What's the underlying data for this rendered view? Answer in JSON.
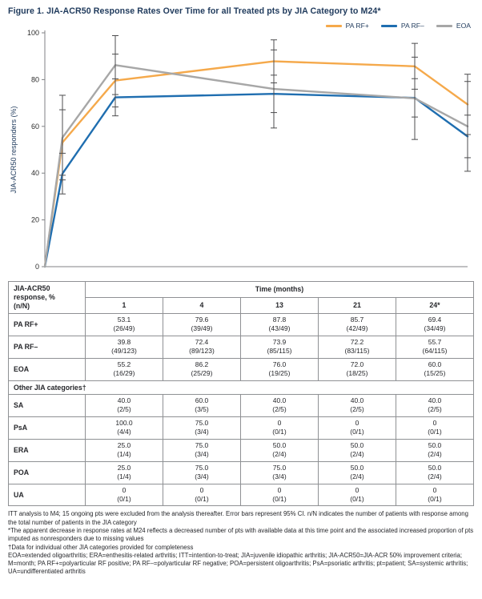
{
  "title": "Figure 1. JIA-ACR50 Response Rates Over Time for all Treated pts by JIA Category to M24*",
  "chart_data": {
    "type": "line",
    "x": [
      0,
      1,
      4,
      13,
      21,
      24
    ],
    "xlim": [
      0,
      24
    ],
    "ylim": [
      0,
      100
    ],
    "yticks": [
      0,
      20,
      40,
      60,
      80,
      100
    ],
    "ylabel": "JIA-ACR50 responders (%)",
    "grid": false,
    "legend_position": "top-right",
    "error_bars": "95% CI",
    "series": [
      {
        "name": "PA RF+",
        "color": "#f5a94b",
        "values": [
          0,
          53.1,
          79.6,
          87.8,
          85.7,
          69.4
        ],
        "ci": [
          null,
          14.0,
          11.3,
          9.2,
          9.8,
          12.9
        ]
      },
      {
        "name": "PA RF–",
        "color": "#1f6eb0",
        "values": [
          0,
          39.8,
          72.4,
          73.9,
          72.2,
          55.7
        ],
        "ci": [
          null,
          8.7,
          7.9,
          8.0,
          8.2,
          9.1
        ]
      },
      {
        "name": "EOA",
        "color": "#a7a7a7",
        "values": [
          0,
          55.2,
          86.2,
          76.0,
          72.0,
          60.0
        ],
        "ci": [
          null,
          18.1,
          12.6,
          16.7,
          17.6,
          19.2
        ]
      }
    ]
  },
  "table": {
    "corner_header": [
      "JIA-ACR50",
      "response, %",
      "(n/N)"
    ],
    "time_header": "Time (months)",
    "months": [
      "1",
      "4",
      "13",
      "21",
      "24*"
    ],
    "rows": [
      {
        "label": "PA RF+",
        "values": [
          "53.1",
          "79.6",
          "87.8",
          "85.7",
          "69.4"
        ],
        "fractions": [
          "(26/49)",
          "(39/49)",
          "(43/49)",
          "(42/49)",
          "(34/49)"
        ]
      },
      {
        "label": "PA RF–",
        "values": [
          "39.8",
          "72.4",
          "73.9",
          "72.2",
          "55.7"
        ],
        "fractions": [
          "(49/123)",
          "(89/123)",
          "(85/115)",
          "(83/115)",
          "(64/115)"
        ]
      },
      {
        "label": "EOA",
        "values": [
          "55.2",
          "86.2",
          "76.0",
          "72.0",
          "60.0"
        ],
        "fractions": [
          "(16/29)",
          "(25/29)",
          "(19/25)",
          "(18/25)",
          "(15/25)"
        ]
      }
    ],
    "section_header": "Other JIA categories†",
    "other_rows": [
      {
        "label": "SA",
        "values": [
          "40.0",
          "60.0",
          "40.0",
          "40.0",
          "40.0"
        ],
        "fractions": [
          "(2/5)",
          "(3/5)",
          "(2/5)",
          "(2/5)",
          "(2/5)"
        ]
      },
      {
        "label": "PsA",
        "values": [
          "100.0",
          "75.0",
          "0",
          "0",
          "0"
        ],
        "fractions": [
          "(4/4)",
          "(3/4)",
          "(0/1)",
          "(0/1)",
          "(0/1)"
        ]
      },
      {
        "label": "ERA",
        "values": [
          "25.0",
          "75.0",
          "50.0",
          "50.0",
          "50.0"
        ],
        "fractions": [
          "(1/4)",
          "(3/4)",
          "(2/4)",
          "(2/4)",
          "(2/4)"
        ]
      },
      {
        "label": "POA",
        "values": [
          "25.0",
          "75.0",
          "75.0",
          "50.0",
          "50.0"
        ],
        "fractions": [
          "(1/4)",
          "(3/4)",
          "(3/4)",
          "(2/4)",
          "(2/4)"
        ]
      },
      {
        "label": "UA",
        "values": [
          "0",
          "0",
          "0",
          "0",
          "0"
        ],
        "fractions": [
          "(0/1)",
          "(0/1)",
          "(0/1)",
          "(0/1)",
          "(0/1)"
        ]
      }
    ]
  },
  "footnotes": [
    "ITT analysis to M4; 15 ongoing pts were excluded from the analysis thereafter. Error bars represent 95% CI. n/N indicates the number of patients with response among the total number of patients in the JIA category",
    "*The apparent decrease in response rates at M24 reflects a decreased number of pts with available data at this time point and the associated increased proportion of pts imputed as nonresponders due to missing values",
    "†Data for individual other JIA categories provided for completeness",
    "EOA=extended oligoarthritis; ERA=enthesitis-related arthritis; ITT=intention-to-treat; JIA=juvenile idiopathic arthritis; JIA-ACR50=JIA-ACR 50% improvement criteria; M=month; PA RF+=polyarticular RF positive; PA RF–=polyarticular RF negative; POA=persistent oligoarthritis; PsA=psoriatic arthritis; pt=patient; SA=systemic arthritis; UA=undifferentiated arthritis"
  ]
}
